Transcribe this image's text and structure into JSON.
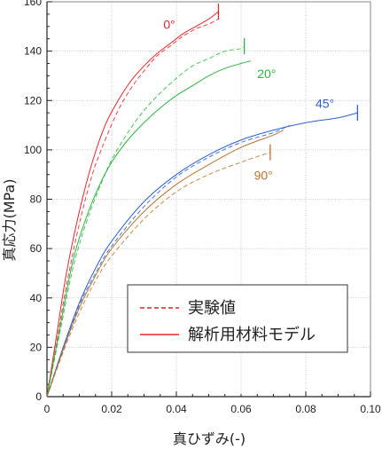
{
  "chart_data": {
    "type": "line",
    "xlabel": "真ひずみ(-)",
    "ylabel": "真応力(MPa)",
    "xlim": [
      0,
      0.1
    ],
    "ylim": [
      0,
      160
    ],
    "xticks": [
      "0",
      "0.02",
      "0.04",
      "0.06",
      "0.08",
      "0.10"
    ],
    "yticks": [
      "0",
      "20",
      "40",
      "60",
      "80",
      "100",
      "120",
      "140",
      "160"
    ],
    "grid": true,
    "legend": {
      "position": "lower-right",
      "entries": [
        {
          "label": "実験値",
          "style": "dashed",
          "color": "#e8242b"
        },
        {
          "label": "解析用材料モデル",
          "style": "solid",
          "color": "#e8242b"
        }
      ]
    },
    "series": [
      {
        "name": "0°",
        "color": "#e8242b",
        "solid": {
          "x": [
            0,
            0.003,
            0.006,
            0.01,
            0.014,
            0.018,
            0.022,
            0.026,
            0.03,
            0.034,
            0.038,
            0.042,
            0.046,
            0.05,
            0.053
          ],
          "y": [
            0,
            25,
            50,
            75,
            95,
            110,
            120,
            128,
            134,
            139,
            143,
            147,
            150,
            153,
            156
          ]
        },
        "dashed": {
          "x": [
            0,
            0.003,
            0.006,
            0.01,
            0.014,
            0.018,
            0.022,
            0.026,
            0.03,
            0.034,
            0.038,
            0.042,
            0.046,
            0.05,
            0.053
          ],
          "y": [
            0,
            22,
            45,
            70,
            90,
            104,
            116,
            125,
            132,
            138,
            142,
            146,
            149,
            151,
            153
          ]
        },
        "end": [
          0.053,
          156
        ],
        "label_at": [
          0.036,
          149
        ]
      },
      {
        "name": "20°",
        "color": "#2db53f",
        "solid": {
          "x": [
            0,
            0.004,
            0.008,
            0.012,
            0.016,
            0.02,
            0.025,
            0.03,
            0.035,
            0.04,
            0.045,
            0.05,
            0.055,
            0.06,
            0.063
          ],
          "y": [
            0,
            28,
            55,
            72,
            85,
            95,
            104,
            111,
            117,
            122,
            126,
            130,
            133,
            135,
            136
          ]
        },
        "dashed": {
          "x": [
            0,
            0.004,
            0.008,
            0.012,
            0.016,
            0.02,
            0.025,
            0.03,
            0.035,
            0.04,
            0.045,
            0.05,
            0.055,
            0.06,
            0.061
          ],
          "y": [
            0,
            26,
            52,
            70,
            84,
            96,
            107,
            116,
            123,
            129,
            134,
            137,
            140,
            141,
            142
          ]
        },
        "end": [
          0.061,
          142
        ],
        "label_at": [
          0.065,
          129
        ]
      },
      {
        "name": "45°",
        "color": "#2a5fd7",
        "solid": {
          "x": [
            0,
            0.005,
            0.01,
            0.015,
            0.02,
            0.03,
            0.04,
            0.05,
            0.06,
            0.07,
            0.08,
            0.09,
            0.096
          ],
          "y": [
            0,
            20,
            38,
            52,
            63,
            79,
            90,
            98,
            104,
            108,
            111,
            113,
            115
          ]
        },
        "dashed": {
          "x": [
            0,
            0.005,
            0.01,
            0.015,
            0.02,
            0.03,
            0.04,
            0.05,
            0.06,
            0.07,
            0.075
          ],
          "y": [
            0,
            19,
            37,
            50,
            61,
            77,
            89,
            97,
            103,
            107,
            110
          ]
        },
        "end": [
          0.096,
          115
        ],
        "label_at": [
          0.083,
          117
        ]
      },
      {
        "name": "90°",
        "color": "#b8732c",
        "solid": {
          "x": [
            0,
            0.005,
            0.01,
            0.015,
            0.02,
            0.03,
            0.04,
            0.05,
            0.06,
            0.07,
            0.073
          ],
          "y": [
            0,
            19,
            36,
            49,
            60,
            75,
            86,
            94,
            101,
            106,
            108
          ]
        },
        "dashed": {
          "x": [
            0,
            0.005,
            0.01,
            0.015,
            0.02,
            0.03,
            0.04,
            0.05,
            0.06,
            0.069
          ],
          "y": [
            0,
            18,
            34,
            47,
            57,
            72,
            83,
            90,
            95,
            99
          ]
        },
        "end": [
          0.069,
          99
        ],
        "label_at": [
          0.064,
          88
        ]
      }
    ]
  }
}
